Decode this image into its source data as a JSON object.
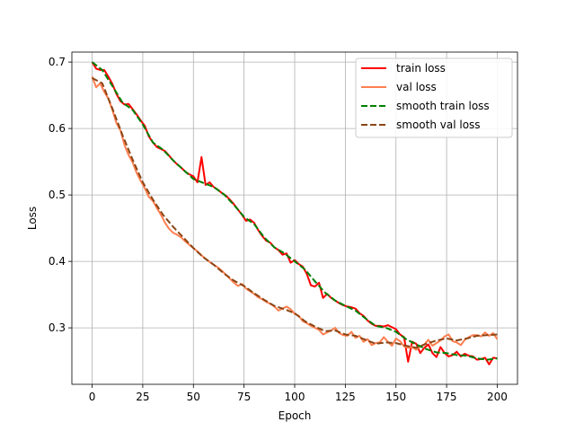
{
  "chart_data": {
    "type": "line",
    "title": "",
    "xlabel": "Epoch",
    "ylabel": "Loss",
    "xlim": [
      -10,
      210
    ],
    "ylim": [
      0.215,
      0.715
    ],
    "xticks": [
      0,
      25,
      50,
      75,
      100,
      125,
      150,
      175,
      200
    ],
    "yticks": [
      0.3,
      0.4,
      0.5,
      0.6,
      0.7
    ],
    "grid": true,
    "legend_position": "upper right",
    "series": [
      {
        "name": "train loss",
        "color": "#ff0000",
        "style": "solid",
        "width": 2,
        "x": [
          0,
          2,
          4,
          6,
          8,
          10,
          12,
          14,
          16,
          18,
          20,
          22,
          24,
          26,
          28,
          30,
          32,
          34,
          36,
          38,
          40,
          42,
          44,
          46,
          48,
          50,
          52,
          54,
          56,
          58,
          60,
          62,
          64,
          66,
          68,
          70,
          72,
          74,
          76,
          78,
          80,
          82,
          84,
          86,
          88,
          90,
          92,
          94,
          96,
          98,
          100,
          102,
          104,
          106,
          108,
          110,
          112,
          114,
          116,
          118,
          120,
          122,
          124,
          126,
          128,
          130,
          132,
          134,
          136,
          138,
          140,
          142,
          144,
          146,
          148,
          150,
          152,
          154,
          156,
          158,
          160,
          162,
          164,
          166,
          168,
          170,
          172,
          174,
          176,
          178,
          180,
          182,
          184,
          186,
          188,
          190,
          192,
          194,
          196,
          198,
          200
        ],
        "values": [
          0.7,
          0.69,
          0.688,
          0.688,
          0.678,
          0.667,
          0.652,
          0.641,
          0.636,
          0.637,
          0.629,
          0.621,
          0.612,
          0.604,
          0.588,
          0.579,
          0.572,
          0.569,
          0.566,
          0.559,
          0.552,
          0.546,
          0.541,
          0.535,
          0.531,
          0.528,
          0.519,
          0.557,
          0.515,
          0.519,
          0.512,
          0.508,
          0.503,
          0.499,
          0.493,
          0.486,
          0.478,
          0.47,
          0.461,
          0.463,
          0.458,
          0.447,
          0.438,
          0.431,
          0.428,
          0.421,
          0.417,
          0.41,
          0.412,
          0.398,
          0.402,
          0.396,
          0.392,
          0.381,
          0.364,
          0.362,
          0.368,
          0.345,
          0.351,
          0.345,
          0.341,
          0.337,
          0.334,
          0.332,
          0.331,
          0.329,
          0.322,
          0.318,
          0.311,
          0.306,
          0.303,
          0.303,
          0.302,
          0.304,
          0.301,
          0.298,
          0.29,
          0.286,
          0.249,
          0.279,
          0.276,
          0.262,
          0.27,
          0.275,
          0.262,
          0.256,
          0.271,
          0.262,
          0.257,
          0.259,
          0.264,
          0.257,
          0.261,
          0.258,
          0.257,
          0.252,
          0.253,
          0.255,
          0.245,
          0.255,
          0.254
        ]
      },
      {
        "name": "val loss",
        "color": "#ff7f50",
        "style": "solid",
        "width": 2,
        "x": [
          0,
          2,
          4,
          6,
          8,
          10,
          12,
          14,
          16,
          18,
          20,
          22,
          24,
          26,
          28,
          30,
          32,
          34,
          36,
          38,
          40,
          42,
          44,
          46,
          48,
          50,
          52,
          54,
          56,
          58,
          60,
          62,
          64,
          66,
          68,
          70,
          72,
          74,
          76,
          78,
          80,
          82,
          84,
          86,
          88,
          90,
          92,
          94,
          96,
          98,
          100,
          102,
          104,
          106,
          108,
          110,
          112,
          114,
          116,
          118,
          120,
          122,
          124,
          126,
          128,
          130,
          132,
          134,
          136,
          138,
          140,
          142,
          144,
          146,
          148,
          150,
          152,
          154,
          156,
          158,
          160,
          162,
          164,
          166,
          168,
          170,
          172,
          174,
          176,
          178,
          180,
          182,
          184,
          186,
          188,
          190,
          192,
          194,
          196,
          198,
          200
        ],
        "values": [
          0.678,
          0.662,
          0.668,
          0.655,
          0.645,
          0.628,
          0.608,
          0.597,
          0.575,
          0.56,
          0.549,
          0.533,
          0.521,
          0.51,
          0.497,
          0.491,
          0.48,
          0.47,
          0.458,
          0.449,
          0.443,
          0.44,
          0.436,
          0.43,
          0.425,
          0.42,
          0.415,
          0.409,
          0.404,
          0.399,
          0.395,
          0.391,
          0.386,
          0.38,
          0.374,
          0.368,
          0.363,
          0.366,
          0.359,
          0.355,
          0.351,
          0.346,
          0.343,
          0.339,
          0.336,
          0.332,
          0.326,
          0.329,
          0.332,
          0.328,
          0.321,
          0.318,
          0.31,
          0.307,
          0.303,
          0.3,
          0.297,
          0.29,
          0.293,
          0.296,
          0.3,
          0.292,
          0.289,
          0.288,
          0.294,
          0.285,
          0.288,
          0.279,
          0.283,
          0.274,
          0.277,
          0.278,
          0.286,
          0.279,
          0.273,
          0.284,
          0.28,
          0.272,
          0.27,
          0.271,
          0.267,
          0.272,
          0.275,
          0.282,
          0.273,
          0.277,
          0.281,
          0.287,
          0.29,
          0.28,
          0.278,
          0.274,
          0.282,
          0.286,
          0.289,
          0.289,
          0.287,
          0.293,
          0.288,
          0.292,
          0.283
        ]
      },
      {
        "name": "smooth train loss",
        "color": "#008000",
        "style": "dashed",
        "width": 2,
        "x": [
          0,
          5,
          10,
          15,
          20,
          25,
          30,
          35,
          40,
          45,
          50,
          55,
          60,
          65,
          70,
          75,
          80,
          85,
          90,
          95,
          100,
          105,
          110,
          115,
          120,
          125,
          130,
          135,
          140,
          145,
          150,
          155,
          160,
          165,
          170,
          175,
          180,
          185,
          190,
          195,
          200
        ],
        "values": [
          0.7,
          0.688,
          0.664,
          0.639,
          0.628,
          0.606,
          0.579,
          0.568,
          0.552,
          0.538,
          0.524,
          0.518,
          0.512,
          0.501,
          0.485,
          0.467,
          0.456,
          0.436,
          0.421,
          0.412,
          0.4,
          0.388,
          0.37,
          0.353,
          0.341,
          0.333,
          0.326,
          0.314,
          0.303,
          0.3,
          0.294,
          0.283,
          0.275,
          0.268,
          0.263,
          0.262,
          0.259,
          0.258,
          0.254,
          0.252,
          0.254
        ]
      },
      {
        "name": "smooth val loss",
        "color": "#8b4513",
        "style": "dashed",
        "width": 2,
        "x": [
          0,
          5,
          10,
          15,
          20,
          25,
          30,
          35,
          40,
          45,
          50,
          55,
          60,
          65,
          70,
          75,
          80,
          85,
          90,
          95,
          100,
          105,
          110,
          115,
          120,
          125,
          130,
          135,
          140,
          145,
          150,
          155,
          160,
          165,
          170,
          175,
          180,
          185,
          190,
          195,
          200
        ],
        "values": [
          0.676,
          0.668,
          0.63,
          0.59,
          0.553,
          0.519,
          0.493,
          0.47,
          0.452,
          0.436,
          0.42,
          0.406,
          0.395,
          0.382,
          0.371,
          0.363,
          0.352,
          0.342,
          0.333,
          0.328,
          0.322,
          0.31,
          0.302,
          0.295,
          0.296,
          0.29,
          0.288,
          0.282,
          0.276,
          0.278,
          0.277,
          0.273,
          0.27,
          0.276,
          0.281,
          0.284,
          0.281,
          0.284,
          0.288,
          0.289,
          0.29
        ]
      }
    ]
  }
}
